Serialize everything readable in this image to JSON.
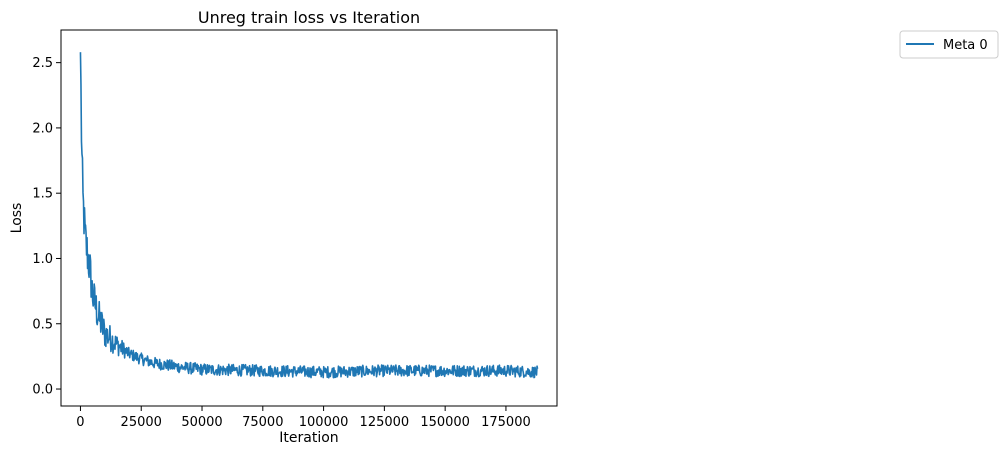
{
  "chart_data": {
    "type": "line",
    "title": "Unreg train loss vs Iteration",
    "xlabel": "Iteration",
    "ylabel": "Loss",
    "xlim": [
      -8000,
      196000
    ],
    "ylim": [
      -0.13,
      2.75
    ],
    "xticks": [
      0,
      25000,
      50000,
      75000,
      100000,
      125000,
      150000,
      175000
    ],
    "xtick_labels": [
      "0",
      "25000",
      "50000",
      "75000",
      "100000",
      "125000",
      "150000",
      "175000"
    ],
    "yticks": [
      0.0,
      0.5,
      1.0,
      1.5,
      2.0,
      2.5
    ],
    "ytick_labels": [
      "0.0",
      "0.5",
      "1.0",
      "1.5",
      "2.0",
      "2.5"
    ],
    "grid": false,
    "legend_position": "outside-right-top",
    "series": [
      {
        "name": "Meta 0",
        "color": "#1f77b4",
        "x_range": [
          0,
          188000
        ],
        "initial_value": 2.58,
        "approx_points": [
          [
            0,
            2.58
          ],
          [
            500,
            1.85
          ],
          [
            1000,
            1.45
          ],
          [
            2000,
            1.15
          ],
          [
            3000,
            1.02
          ],
          [
            4000,
            0.9
          ],
          [
            5000,
            0.72
          ],
          [
            7500,
            0.55
          ],
          [
            10000,
            0.43
          ],
          [
            15000,
            0.34
          ],
          [
            20000,
            0.27
          ],
          [
            25000,
            0.23
          ],
          [
            30000,
            0.2
          ],
          [
            40000,
            0.17
          ],
          [
            50000,
            0.15
          ],
          [
            75000,
            0.14
          ],
          [
            100000,
            0.13
          ],
          [
            125000,
            0.14
          ],
          [
            150000,
            0.14
          ],
          [
            175000,
            0.14
          ],
          [
            188000,
            0.13
          ]
        ],
        "noise_amplitude": 0.045
      }
    ]
  },
  "legend": {
    "entries": [
      "Meta 0"
    ]
  }
}
